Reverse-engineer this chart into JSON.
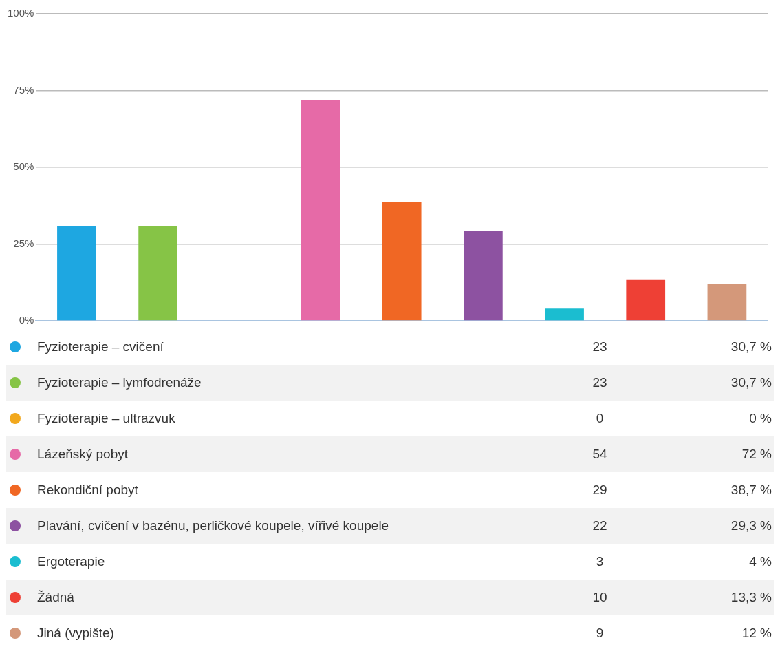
{
  "chart_data": {
    "type": "bar",
    "categories": [
      null
    ],
    "series": [
      {
        "name": "Fyzioterapie – cvičení",
        "color": "#1ea7e1",
        "values": [
          30.7
        ]
      },
      {
        "name": "Fyzioterapie – lymfodrenáže",
        "color": "#86c446",
        "values": [
          30.7
        ]
      },
      {
        "name": "Fyzioterapie – ultrazvuk",
        "color": "#f2a81d",
        "values": [
          0
        ]
      },
      {
        "name": "Lázeňský pobyt",
        "color": "#e66aa7",
        "values": [
          72
        ]
      },
      {
        "name": "Rekondiční pobyt",
        "color": "#f06724",
        "values": [
          38.7
        ]
      },
      {
        "name": "Plavání, cvičení v bazénu, perličkové koupele, vířivé koupele",
        "color": "#8d52a1",
        "values": [
          29.3
        ]
      },
      {
        "name": "Ergoterapie",
        "color": "#1bbdd0",
        "values": [
          4
        ]
      },
      {
        "name": "Žádná",
        "color": "#ee4035",
        "values": [
          13.3
        ]
      },
      {
        "name": "Jiná (vypište)",
        "color": "#d4987a",
        "values": [
          12
        ]
      }
    ],
    "annotations": [
      "23",
      "30,7 %",
      "23",
      "30,7 %",
      "0",
      "0 %",
      "54",
      "72 %",
      "29",
      "38,7 %",
      "22",
      "29,3 %",
      "3",
      "4 %",
      "10",
      "13,3 %",
      "9",
      "12 %"
    ],
    "ylim": [
      0,
      100
    ],
    "yticks": [
      {
        "value": 0,
        "label": "0%"
      },
      {
        "value": 25,
        "label": "25%"
      },
      {
        "value": 50,
        "label": "50%"
      },
      {
        "value": 75,
        "label": "75%"
      },
      {
        "value": 100,
        "label": "100%"
      }
    ],
    "grid": "y",
    "tick_labels": "y",
    "legend": "bottom"
  }
}
